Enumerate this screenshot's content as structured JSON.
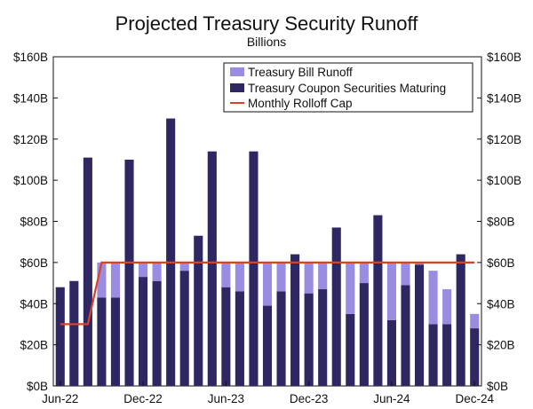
{
  "chart_data": {
    "type": "bar",
    "title": "Projected Treasury Security Runoff",
    "subtitle": "Billions",
    "categories": [
      "Jun-22",
      "Jul-22",
      "Aug-22",
      "Sep-22",
      "Oct-22",
      "Nov-22",
      "Dec-22",
      "Jan-23",
      "Feb-23",
      "Mar-23",
      "Apr-23",
      "May-23",
      "Jun-23",
      "Jul-23",
      "Aug-23",
      "Sep-23",
      "Oct-23",
      "Nov-23",
      "Dec-23",
      "Jan-24",
      "Feb-24",
      "Mar-24",
      "Apr-24",
      "May-24",
      "Jun-24",
      "Jul-24",
      "Aug-24",
      "Sep-24",
      "Oct-24",
      "Nov-24",
      "Dec-24"
    ],
    "x_tick_labels": [
      "Jun-22",
      "Dec-22",
      "Jun-23",
      "Dec-23",
      "Jun-24",
      "Dec-24"
    ],
    "series": [
      {
        "name": "Treasury Coupon Securities Maturing",
        "color": "#2e2762",
        "values": [
          48,
          51,
          111,
          43,
          43,
          110,
          53,
          51,
          130,
          56,
          73,
          114,
          48,
          46,
          114,
          39,
          46,
          64,
          45,
          47,
          77,
          35,
          50,
          83,
          32,
          49,
          59,
          30,
          30,
          64,
          28
        ]
      },
      {
        "name": "Treasury Bill Runoff",
        "color": "#9a8ce0",
        "values": [
          0,
          0,
          0,
          17,
          17,
          0,
          7,
          9,
          0,
          4,
          0,
          0,
          12,
          14,
          0,
          21,
          14,
          0,
          15,
          13,
          0,
          25,
          10,
          0,
          28,
          11,
          1,
          26,
          17,
          0,
          7
        ]
      }
    ],
    "line_series": {
      "name": "Monthly Rolloff Cap",
      "color": "#d9412b",
      "values": [
        30,
        30,
        30,
        60,
        60,
        60,
        60,
        60,
        60,
        60,
        60,
        60,
        60,
        60,
        60,
        60,
        60,
        60,
        60,
        60,
        60,
        60,
        60,
        60,
        60,
        60,
        60,
        60,
        60,
        60,
        60
      ]
    },
    "ylim": [
      0,
      160
    ],
    "y_tick_labels": [
      "$0B",
      "$20B",
      "$40B",
      "$60B",
      "$80B",
      "$100B",
      "$120B",
      "$140B",
      "$160B"
    ],
    "legend": [
      "Treasury Bill Runoff",
      "Treasury Coupon Securities Maturing",
      "Monthly Rolloff Cap"
    ],
    "legend_position": "top-right",
    "grid": false
  }
}
